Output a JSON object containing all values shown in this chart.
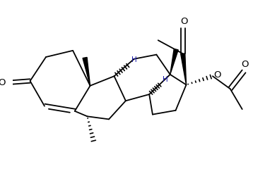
{
  "bg_color": "#ffffff",
  "line_color": "#000000",
  "bond_lw": 1.3,
  "figsize": [
    3.58,
    2.51
  ],
  "dpi": 100,
  "xlim": [
    0,
    10
  ],
  "ylim": [
    0,
    7
  ]
}
